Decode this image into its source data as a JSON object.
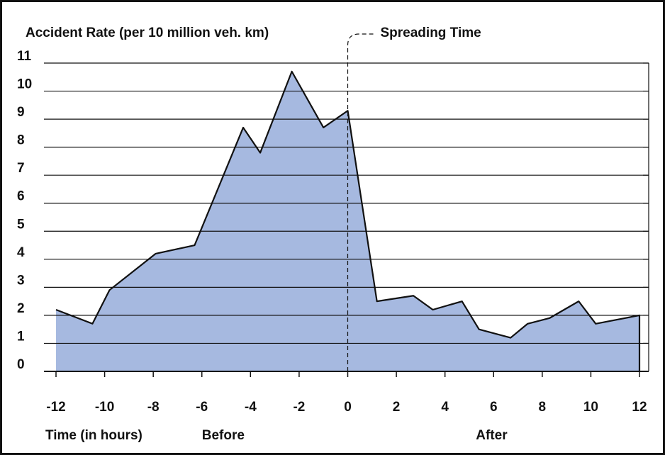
{
  "chart_data": {
    "type": "area",
    "y_label": "Accident Rate (per 10 million veh. km)",
    "x_label": "Time (in hours)",
    "annotations": [
      {
        "text": "Spreading Time",
        "x": 0
      },
      {
        "text": "Before",
        "x": -6
      },
      {
        "text": "After",
        "x": 6
      }
    ],
    "x": [
      -12,
      -10.5,
      -9.8,
      -7.9,
      -6.3,
      -4.3,
      -3.6,
      -2.3,
      -1.0,
      0,
      1.2,
      2.7,
      3.5,
      4.7,
      5.4,
      6.7,
      7.4,
      8.3,
      9.5,
      10.2,
      12
    ],
    "values": [
      2.2,
      1.7,
      2.9,
      4.2,
      4.5,
      8.7,
      7.8,
      10.7,
      8.7,
      9.3,
      2.5,
      2.7,
      2.2,
      2.5,
      1.5,
      1.2,
      1.7,
      1.9,
      2.5,
      1.7,
      2.0
    ],
    "color": "#a6b9e0",
    "xlim": [
      -12,
      12
    ],
    "ylim": [
      0,
      11
    ],
    "xticks": [
      -12,
      -10,
      -8,
      -6,
      -4,
      -2,
      0,
      2,
      4,
      6,
      8,
      10,
      12
    ],
    "yticks": [
      0,
      1,
      2,
      3,
      4,
      5,
      6,
      7,
      8,
      9,
      10,
      11
    ],
    "grid": true
  }
}
